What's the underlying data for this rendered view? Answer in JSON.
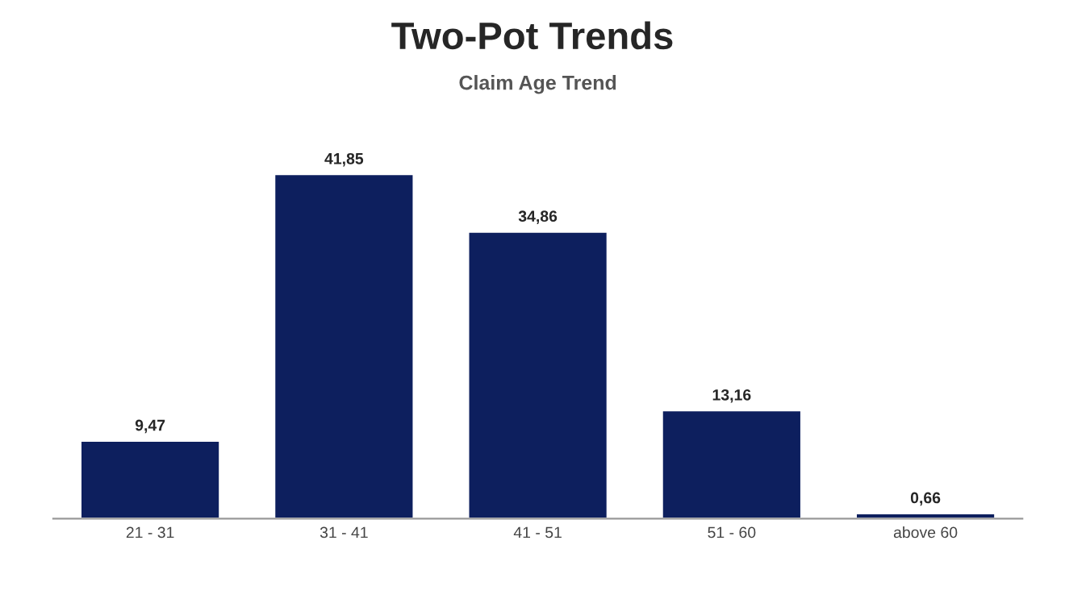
{
  "chart_data": {
    "type": "bar",
    "title": "Two-Pot Trends",
    "subtitle": "Claim Age Trend",
    "categories": [
      "21 - 31",
      "31 - 41",
      "41 - 51",
      "51 - 60",
      "above 60"
    ],
    "values": [
      9.47,
      41.85,
      34.86,
      13.16,
      0.66
    ],
    "value_labels": [
      "9,47",
      "41,85",
      "34,86",
      "13,16",
      "0,66"
    ],
    "color": "#0d1f5e",
    "grid": false
  }
}
